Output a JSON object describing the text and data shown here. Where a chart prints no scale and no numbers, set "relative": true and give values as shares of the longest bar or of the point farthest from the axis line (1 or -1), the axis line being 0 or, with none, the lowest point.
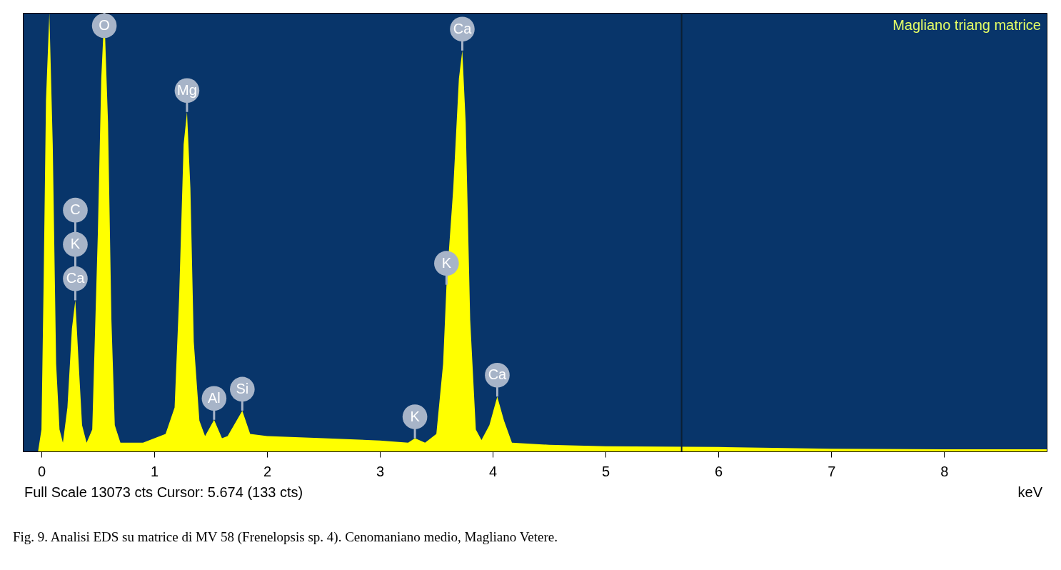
{
  "chart_data": {
    "type": "area",
    "relative": true,
    "title": "Magliano triang matrice",
    "xlabel": "keV",
    "x": [
      -0.165,
      -0.03,
      0.0,
      0.02,
      0.04,
      0.07,
      0.1,
      0.13,
      0.16,
      0.19,
      0.23,
      0.27,
      0.3,
      0.33,
      0.36,
      0.4,
      0.45,
      0.5,
      0.53,
      0.557,
      0.59,
      0.62,
      0.65,
      0.7,
      0.9,
      1.1,
      1.18,
      1.22,
      1.26,
      1.29,
      1.32,
      1.35,
      1.4,
      1.45,
      1.53,
      1.6,
      1.65,
      1.78,
      1.85,
      2.0,
      2.5,
      3.0,
      3.25,
      3.31,
      3.4,
      3.5,
      3.56,
      3.59,
      3.65,
      3.7,
      3.73,
      3.76,
      3.8,
      3.85,
      3.9,
      3.97,
      4.04,
      4.1,
      4.17,
      4.5,
      5.0,
      6.0,
      7.0,
      8.0,
      8.91
    ],
    "series": [
      {
        "color": "#ffff00",
        "values": [
          0,
          0,
          0.05,
          0.4,
          0.8,
          1.0,
          0.7,
          0.2,
          0.05,
          0.02,
          0.1,
          0.28,
          0.345,
          0.2,
          0.06,
          0.02,
          0.05,
          0.5,
          0.85,
          1.0,
          0.75,
          0.3,
          0.06,
          0.02,
          0.02,
          0.04,
          0.1,
          0.35,
          0.7,
          0.774,
          0.6,
          0.25,
          0.07,
          0.035,
          0.072,
          0.03,
          0.035,
          0.093,
          0.04,
          0.035,
          0.03,
          0.025,
          0.02,
          0.03,
          0.02,
          0.04,
          0.2,
          0.38,
          0.6,
          0.85,
          0.914,
          0.75,
          0.3,
          0.05,
          0.026,
          0.06,
          0.125,
          0.07,
          0.02,
          0.015,
          0.012,
          0.01,
          0.006,
          0.005,
          0.005
        ]
      }
    ],
    "xlim": [
      -0.165,
      8.91
    ],
    "xticks": [
      0,
      1,
      2,
      3,
      4,
      5,
      6,
      7,
      8
    ],
    "ref_lines": [
      {
        "axis": "x",
        "value": 5.674,
        "color": "#0b1f33"
      }
    ],
    "annotations": [
      {
        "text": "O",
        "x": 0.557,
        "y": 1.0
      },
      {
        "text": "C",
        "x": 0.3,
        "y": 0.345
      },
      {
        "text": "K",
        "x": 0.3,
        "y": 0.345
      },
      {
        "text": "Ca",
        "x": 0.3,
        "y": 0.345
      },
      {
        "text": "Mg",
        "x": 1.29,
        "y": 0.774
      },
      {
        "text": "Al",
        "x": 1.53,
        "y": 0.072
      },
      {
        "text": "Si",
        "x": 1.78,
        "y": 0.093
      },
      {
        "text": "K",
        "x": 3.31,
        "y": 0.03
      },
      {
        "text": "K",
        "x": 3.59,
        "y": 0.38
      },
      {
        "text": "Ca",
        "x": 3.73,
        "y": 0.914
      },
      {
        "text": "Ca",
        "x": 4.04,
        "y": 0.125
      },
      "Full Scale 13073 cts Cursor: 5.674  (133 cts)",
      "Fig. 9. Analisi EDS su matrice di MV 58 (Frenelopsis sp. 4). Cenomaniano medio, Magliano Vetere."
    ],
    "grid": false
  }
}
